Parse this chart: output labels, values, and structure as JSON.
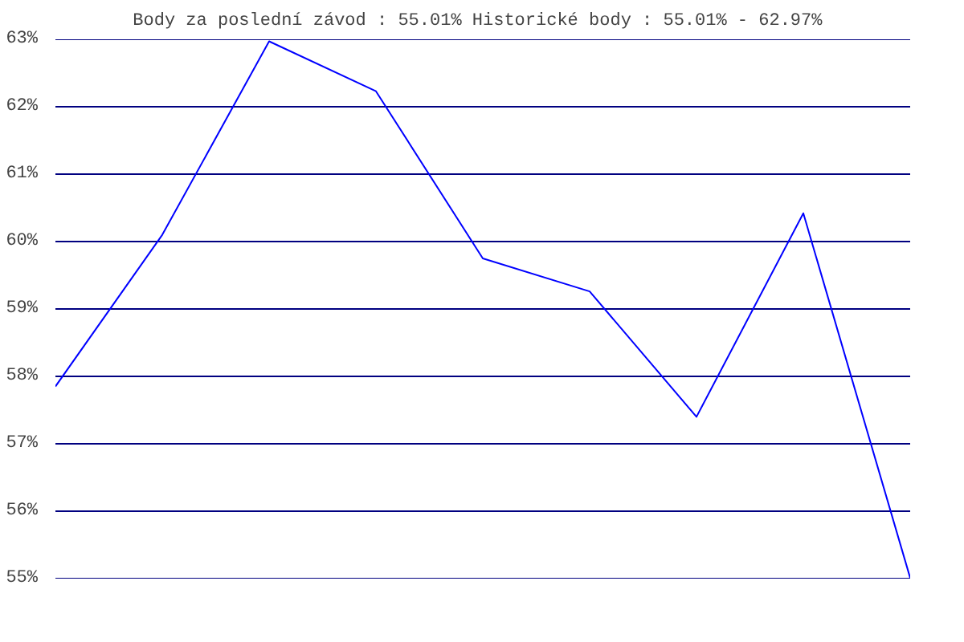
{
  "chart_data": {
    "type": "line",
    "title": "Body za poslední závod : 55.01%  Historické body : 55.01% - 62.97%",
    "categories": [
      null,
      null,
      null,
      null,
      null,
      null,
      null,
      null,
      null
    ],
    "series": [
      {
        "color": "#0000ff",
        "values": [
          57.85,
          60.1,
          62.97,
          62.23,
          59.75,
          59.26,
          57.4,
          60.42,
          55.01
        ]
      }
    ],
    "ylim": [
      55,
      63
    ],
    "yticks": [
      {
        "value": 55,
        "label": "55%"
      },
      {
        "value": 56,
        "label": "56%"
      },
      {
        "value": 57,
        "label": "57%"
      },
      {
        "value": 58,
        "label": "58%"
      },
      {
        "value": 59,
        "label": "59%"
      },
      {
        "value": 60,
        "label": "60%"
      },
      {
        "value": 61,
        "label": "61%"
      },
      {
        "value": 62,
        "label": "62%"
      },
      {
        "value": 63,
        "label": "63%"
      }
    ],
    "grid": "y",
    "marker": "none",
    "line_style": "solid"
  }
}
